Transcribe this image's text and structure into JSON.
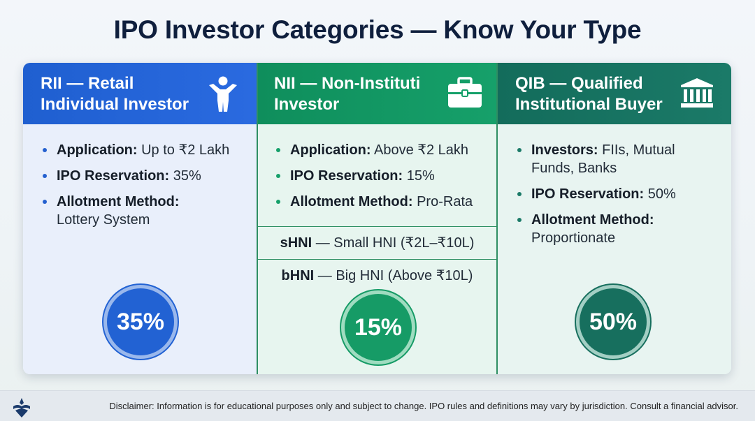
{
  "title": "IPO Investor Categories — Know Your Type",
  "columns": {
    "rii": {
      "header_line1": "RII — Retail",
      "header_line2": "Individual Investor",
      "icon": "person-icon",
      "bullets": [
        {
          "label": "Application:",
          "value": " Up to ₹2 Lakh"
        },
        {
          "label": "IPO Reservation:",
          "value": " 35%"
        },
        {
          "label": "Allotment Method:",
          "value": "Lottery System"
        }
      ],
      "badge": "35%",
      "color": "#2262d3"
    },
    "nii": {
      "header_line1": "NII — Non-Instituti",
      "header_line2": "Investor",
      "icon": "briefcase-icon",
      "bullets": [
        {
          "label": "Application:",
          "value": " Above ₹2 Lakh"
        },
        {
          "label": "IPO Reservation:",
          "value": " 15%"
        },
        {
          "label": "Allotment Method:",
          "value": " Pro-Rata"
        }
      ],
      "sub_categories": [
        {
          "label": "sHNI",
          "value": " — Small HNI (₹2L–₹10L)"
        },
        {
          "label": "bHNI",
          "value": " — Big HNI (Above ₹10L)"
        }
      ],
      "badge": "15%",
      "color": "#169b66"
    },
    "qib": {
      "header_line1": "QIB — Qualified",
      "header_line2": "Institutional Buyer",
      "icon": "bank-building-icon",
      "bullets": [
        {
          "label": "Investors:",
          "value": " FIIs, Mutual Funds, Banks"
        },
        {
          "label": "IPO Reservation:",
          "value": " 50%"
        },
        {
          "label": "Allotment Method:",
          "value": "Proportionate"
        }
      ],
      "badge": "50%",
      "color": "#176f5e"
    }
  },
  "footer": {
    "logo": "brand-logo-icon",
    "disclaimer": "Disclaimer: Information is for educational purposes only and subject to change. IPO rules and definitions may vary by jurisdiction. Consult a financial advisor."
  }
}
